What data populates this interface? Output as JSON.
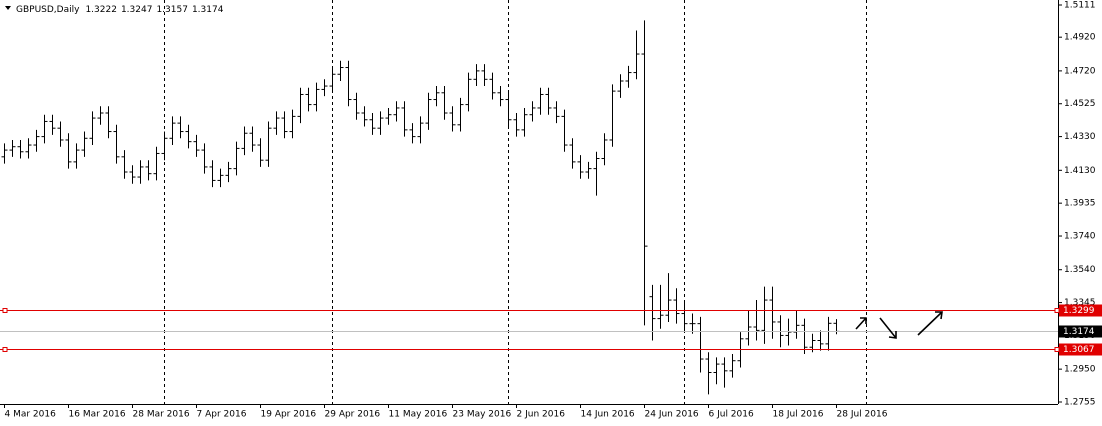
{
  "chart_data": {
    "type": "ohlc",
    "title": "GBPUSD,Daily",
    "color": "#000000",
    "categories": [
      "4 Mar 2016",
      null,
      null,
      null,
      null,
      null,
      null,
      null,
      "16 Mar 2016",
      null,
      null,
      null,
      null,
      null,
      null,
      null,
      "28 Mar 2016",
      null,
      null,
      null,
      null,
      null,
      null,
      null,
      "7 Apr 2016",
      null,
      null,
      null,
      null,
      null,
      null,
      null,
      "19 Apr 2016",
      null,
      null,
      null,
      null,
      null,
      null,
      null,
      "29 Apr 2016",
      null,
      null,
      null,
      null,
      null,
      null,
      null,
      "11 May 2016",
      null,
      null,
      null,
      null,
      null,
      null,
      null,
      "23 May 2016",
      null,
      null,
      null,
      null,
      null,
      null,
      null,
      "2 Jun 2016",
      null,
      null,
      null,
      null,
      null,
      null,
      null,
      "14 Jun 2016",
      null,
      null,
      null,
      null,
      null,
      null,
      null,
      "24 Jun 2016",
      null,
      null,
      null,
      null,
      null,
      null,
      null,
      "6 Jul 2016",
      null,
      null,
      null,
      null,
      null,
      null,
      null,
      "18 Jul 2016",
      null,
      null,
      null,
      null,
      null,
      null,
      null,
      "28 Jul 2016"
    ],
    "open": [
      1.421,
      1.425,
      1.427,
      1.424,
      1.428,
      1.433,
      1.442,
      1.438,
      1.431,
      1.418,
      1.425,
      1.432,
      1.444,
      1.447,
      1.436,
      1.421,
      1.412,
      1.409,
      1.415,
      1.411,
      1.423,
      1.432,
      1.441,
      1.436,
      1.43,
      1.425,
      1.415,
      1.407,
      1.41,
      1.414,
      1.426,
      1.435,
      1.428,
      1.419,
      1.438,
      1.444,
      1.436,
      1.445,
      1.458,
      1.452,
      1.461,
      1.463,
      1.47,
      1.474,
      1.455,
      1.447,
      1.443,
      1.438,
      1.444,
      1.446,
      1.45,
      1.437,
      1.433,
      1.441,
      1.455,
      1.459,
      1.447,
      1.44,
      1.452,
      1.467,
      1.472,
      1.467,
      1.459,
      1.455,
      1.443,
      1.437,
      1.446,
      1.45,
      1.458,
      1.45,
      1.445,
      1.428,
      1.418,
      1.412,
      1.414,
      1.42,
      1.431,
      1.46,
      1.466,
      1.471,
      1.482,
      1.338,
      1.325,
      1.327,
      1.336,
      1.328,
      1.322,
      1.322,
      1.301,
      1.293,
      1.298,
      1.294,
      1.3,
      1.313,
      1.32,
      1.318,
      1.336,
      1.323,
      1.315,
      1.317,
      1.321,
      1.308,
      1.312,
      1.31,
      1.3222
    ],
    "high": [
      1.429,
      1.431,
      1.431,
      1.432,
      1.437,
      1.446,
      1.446,
      1.442,
      1.435,
      1.429,
      1.436,
      1.448,
      1.451,
      1.451,
      1.44,
      1.425,
      1.416,
      1.419,
      1.419,
      1.427,
      1.436,
      1.445,
      1.445,
      1.44,
      1.434,
      1.429,
      1.419,
      1.414,
      1.418,
      1.43,
      1.439,
      1.439,
      1.432,
      1.442,
      1.448,
      1.448,
      1.449,
      1.462,
      1.462,
      1.465,
      1.467,
      1.474,
      1.478,
      1.478,
      1.459,
      1.451,
      1.447,
      1.448,
      1.45,
      1.454,
      1.454,
      1.441,
      1.445,
      1.459,
      1.463,
      1.463,
      1.451,
      1.456,
      1.471,
      1.476,
      1.476,
      1.471,
      1.463,
      1.459,
      1.447,
      1.45,
      1.454,
      1.462,
      1.462,
      1.454,
      1.449,
      1.432,
      1.422,
      1.418,
      1.424,
      1.435,
      1.464,
      1.47,
      1.475,
      1.496,
      1.502,
      1.345,
      1.345,
      1.352,
      1.343,
      1.335,
      1.328,
      1.326,
      1.305,
      1.302,
      1.302,
      1.304,
      1.317,
      1.33,
      1.336,
      1.344,
      1.344,
      1.327,
      1.325,
      1.33,
      1.325,
      1.316,
      1.318,
      1.326,
      1.3247
    ],
    "low": [
      1.417,
      1.421,
      1.42,
      1.42,
      1.424,
      1.429,
      1.434,
      1.427,
      1.414,
      1.414,
      1.421,
      1.428,
      1.44,
      1.432,
      1.417,
      1.408,
      1.405,
      1.405,
      1.407,
      1.407,
      1.419,
      1.428,
      1.432,
      1.426,
      1.421,
      1.411,
      1.403,
      1.403,
      1.406,
      1.41,
      1.422,
      1.424,
      1.415,
      1.415,
      1.434,
      1.432,
      1.432,
      1.441,
      1.448,
      1.448,
      1.457,
      1.459,
      1.466,
      1.451,
      1.443,
      1.439,
      1.434,
      1.434,
      1.44,
      1.442,
      1.433,
      1.429,
      1.429,
      1.437,
      1.451,
      1.443,
      1.436,
      1.436,
      1.448,
      1.463,
      1.463,
      1.455,
      1.451,
      1.439,
      1.433,
      1.433,
      1.442,
      1.446,
      1.446,
      1.441,
      1.424,
      1.414,
      1.408,
      1.408,
      1.398,
      1.416,
      1.427,
      1.456,
      1.462,
      1.467,
      1.321,
      1.312,
      1.319,
      1.323,
      1.322,
      1.318,
      1.316,
      1.293,
      1.28,
      1.286,
      1.284,
      1.29,
      1.296,
      1.309,
      1.312,
      1.31,
      1.313,
      1.308,
      1.309,
      1.313,
      1.304,
      1.305,
      1.306,
      1.306,
      1.3157
    ],
    "close": [
      1.425,
      1.427,
      1.424,
      1.428,
      1.433,
      1.442,
      1.438,
      1.431,
      1.418,
      1.425,
      1.432,
      1.444,
      1.447,
      1.436,
      1.421,
      1.412,
      1.409,
      1.415,
      1.411,
      1.423,
      1.432,
      1.441,
      1.436,
      1.43,
      1.425,
      1.415,
      1.407,
      1.41,
      1.414,
      1.426,
      1.435,
      1.428,
      1.419,
      1.438,
      1.444,
      1.436,
      1.445,
      1.458,
      1.452,
      1.461,
      1.463,
      1.47,
      1.474,
      1.455,
      1.447,
      1.443,
      1.438,
      1.444,
      1.446,
      1.45,
      1.437,
      1.433,
      1.441,
      1.455,
      1.459,
      1.447,
      1.44,
      1.452,
      1.467,
      1.472,
      1.467,
      1.459,
      1.455,
      1.443,
      1.437,
      1.446,
      1.45,
      1.458,
      1.45,
      1.445,
      1.428,
      1.418,
      1.412,
      1.414,
      1.42,
      1.431,
      1.46,
      1.466,
      1.471,
      1.482,
      1.368,
      1.325,
      1.327,
      1.336,
      1.328,
      1.322,
      1.322,
      1.301,
      1.293,
      1.298,
      1.294,
      1.3,
      1.313,
      1.32,
      1.318,
      1.336,
      1.323,
      1.315,
      1.317,
      1.321,
      1.308,
      1.312,
      1.31,
      1.3222,
      1.3174
    ],
    "ylim": [
      1.2755,
      1.5111
    ],
    "yticks": [
      {
        "value": 1.5111,
        "label": "1.5111"
      },
      {
        "value": 1.492,
        "label": "1.4920"
      },
      {
        "value": 1.472,
        "label": "1.4720"
      },
      {
        "value": 1.4525,
        "label": "1.4525"
      },
      {
        "value": 1.433,
        "label": "1.4330"
      },
      {
        "value": 1.413,
        "label": "1.4130"
      },
      {
        "value": 1.3935,
        "label": "1.3935"
      },
      {
        "value": 1.374,
        "label": "1.3740"
      },
      {
        "value": 1.354,
        "label": "1.3540"
      },
      {
        "value": 1.3345,
        "label": "1.3345"
      },
      {
        "value": 1.315,
        "label": "1.3150"
      },
      {
        "value": 1.295,
        "label": "1.2950"
      },
      {
        "value": 1.2755,
        "label": "1.2755"
      }
    ],
    "levels": [
      {
        "value": 1.3299,
        "color": "#e00000"
      },
      {
        "value": 1.3067,
        "color": "#e00000"
      }
    ],
    "last_price": 1.3174,
    "last_price_color": "#000000",
    "grid": false
  }
}
